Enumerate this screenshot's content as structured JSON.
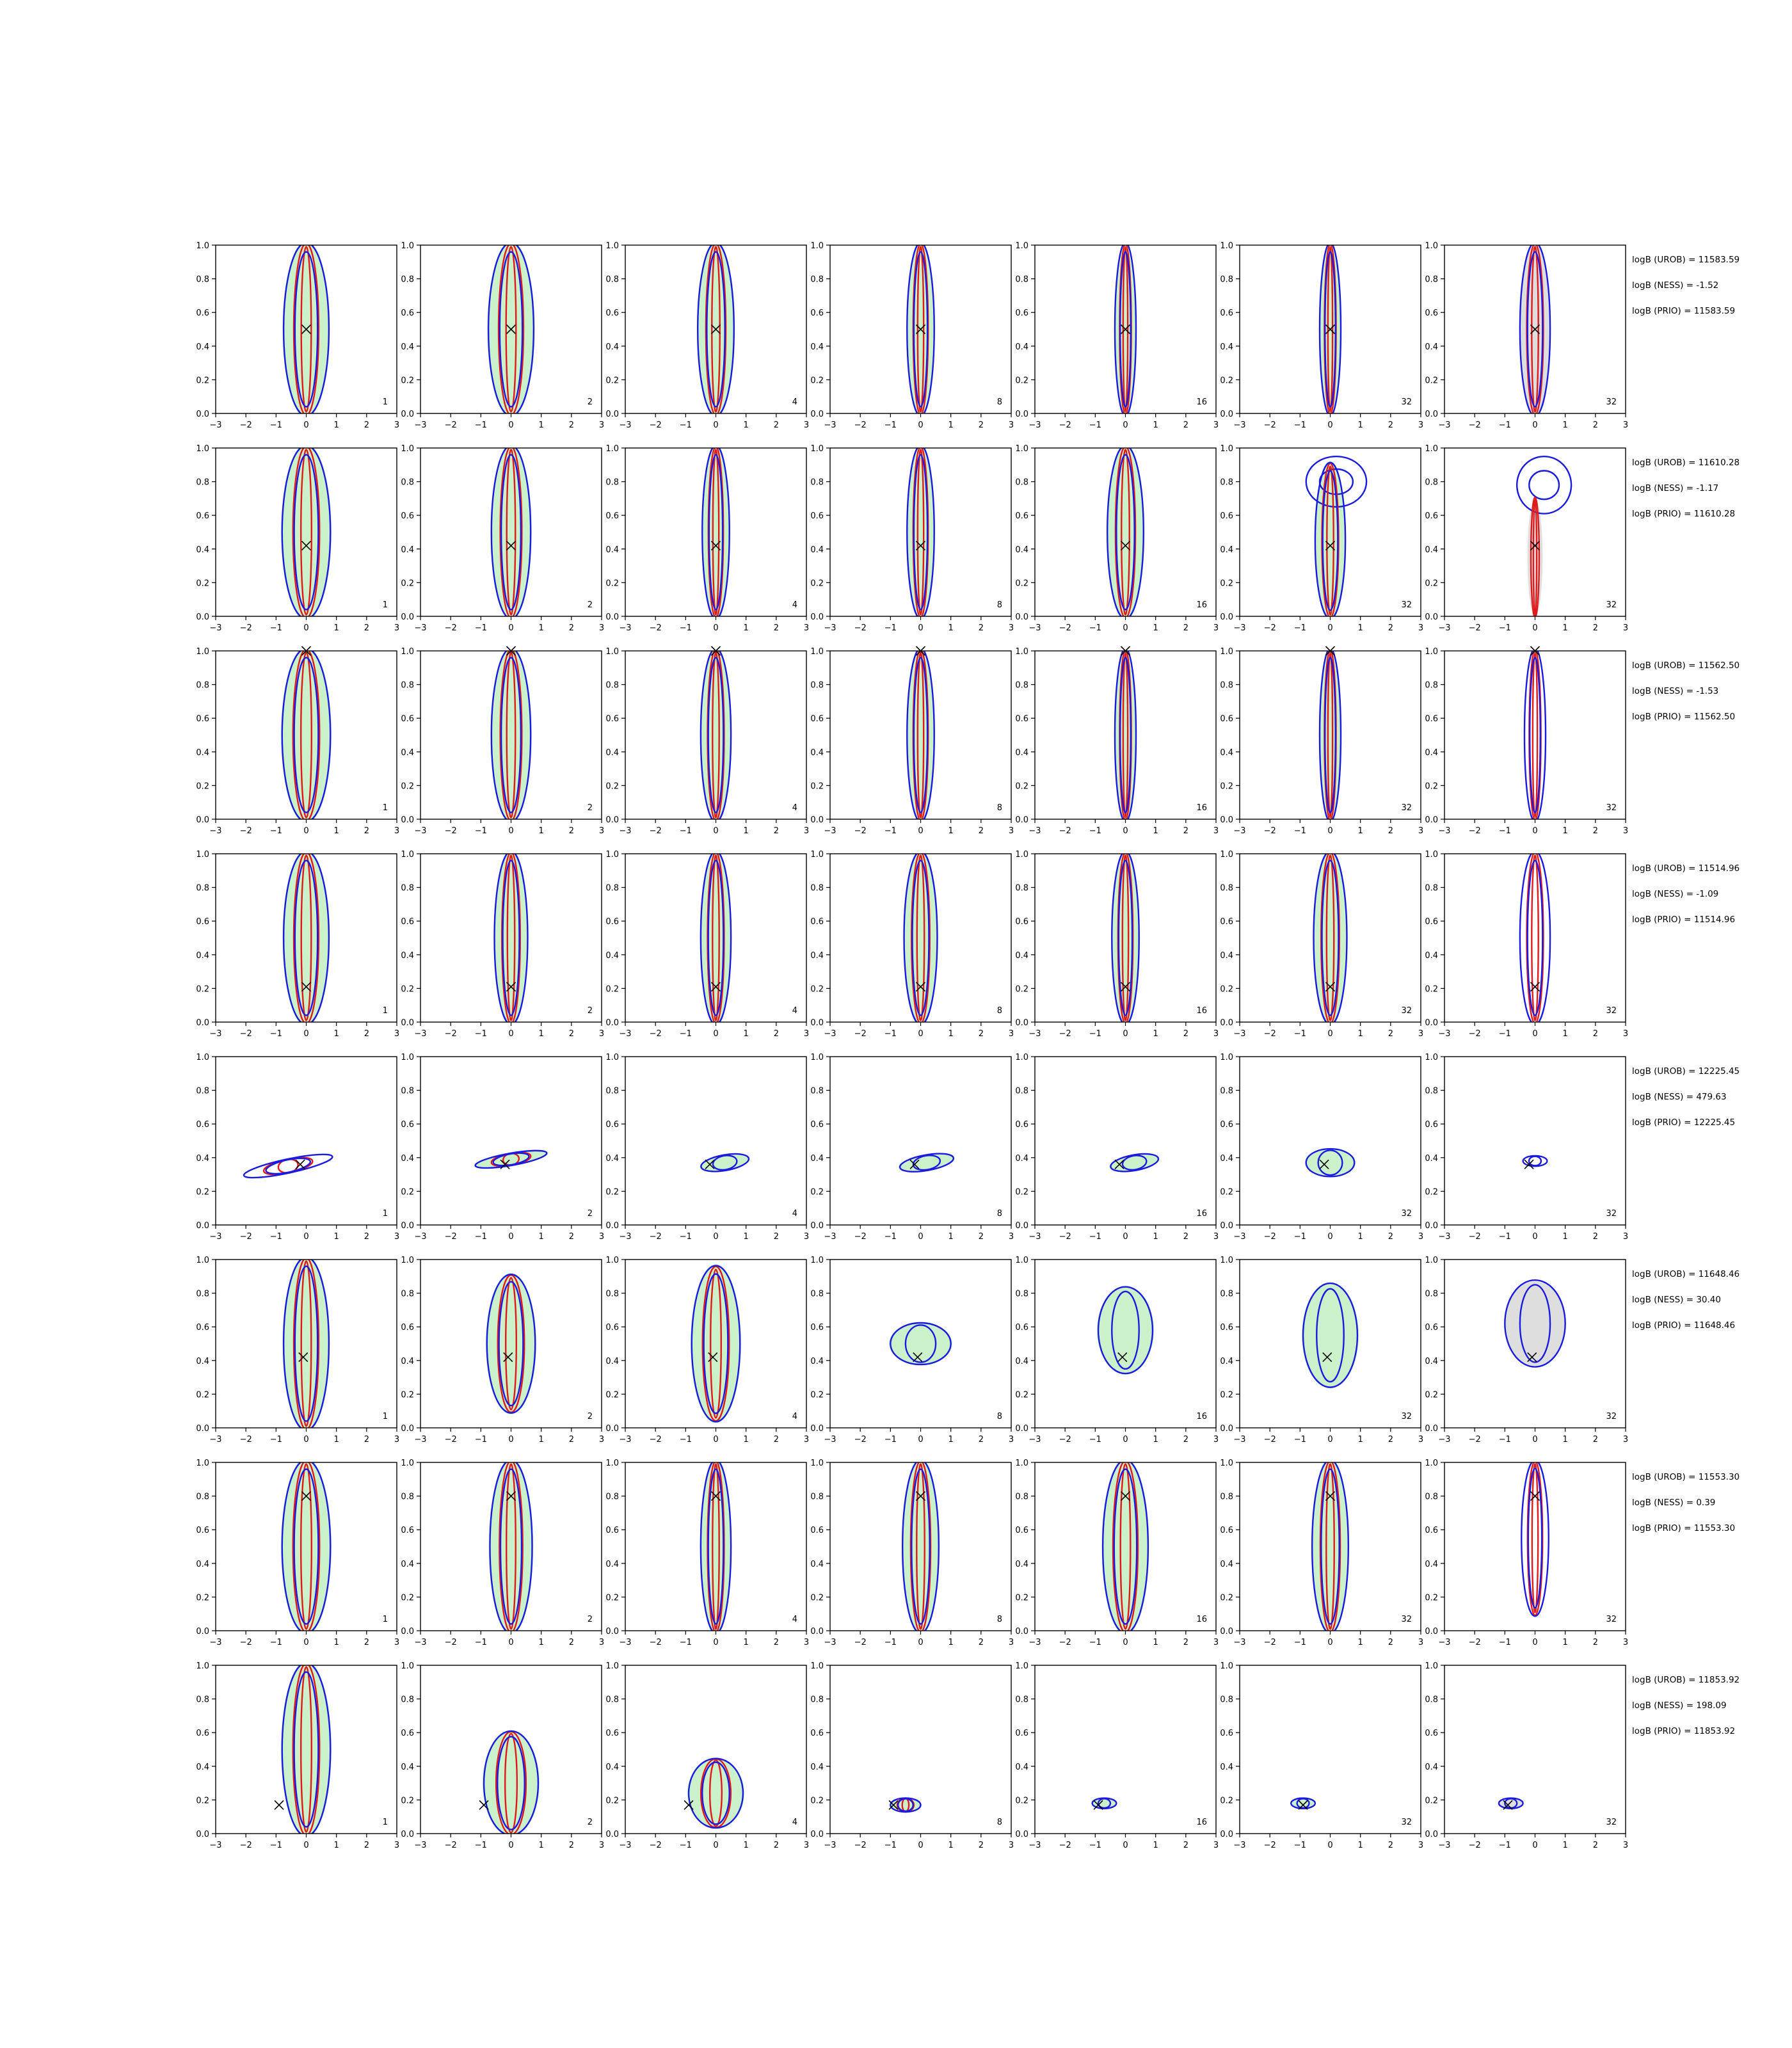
{
  "colors": {
    "red": "#e01a1a",
    "blue": "#1a1ae0",
    "green": "#9ee69e",
    "grey": "#c8c8c8"
  },
  "chart_data": {
    "type": "contour-grid",
    "xlim": [
      -3,
      3
    ],
    "ylim": [
      0.0,
      1.0
    ],
    "xticks": [
      "−3",
      "−2",
      "−1",
      "0",
      "1",
      "2",
      "3"
    ],
    "yticks": [
      "0.0",
      "0.2",
      "0.4",
      "0.6",
      "0.8",
      "1.0"
    ],
    "column_tags": [
      "1",
      "2",
      "4",
      "8",
      "16",
      "32",
      "32"
    ],
    "rows": [
      {
        "truth": [
          0.0,
          0.5
        ],
        "logB": [
          "logB (UROB) = 11583.59",
          "logB (NESS) = -1.52",
          "logB (PRIO) = 11583.59"
        ],
        "panels": [
          {
            "cx": 0.0,
            "cy": 0.5,
            "w": 0.75,
            "h": 0.5,
            "ang": 0,
            "green": true,
            "grey": false,
            "red": true,
            "blue": true
          },
          {
            "cx": 0.0,
            "cy": 0.5,
            "w": 0.75,
            "h": 0.5,
            "ang": 0,
            "green": true,
            "grey": false,
            "red": true,
            "blue": true
          },
          {
            "cx": 0.0,
            "cy": 0.5,
            "w": 0.6,
            "h": 0.5,
            "ang": 0,
            "green": true,
            "grey": false,
            "red": true,
            "blue": true
          },
          {
            "cx": 0.0,
            "cy": 0.5,
            "w": 0.45,
            "h": 0.5,
            "ang": 0,
            "green": true,
            "grey": false,
            "red": true,
            "blue": true
          },
          {
            "cx": 0.0,
            "cy": 0.5,
            "w": 0.35,
            "h": 0.5,
            "ang": 0,
            "green": true,
            "grey": false,
            "red": true,
            "blue": true
          },
          {
            "cx": 0.0,
            "cy": 0.5,
            "w": 0.35,
            "h": 0.5,
            "ang": 0,
            "green": true,
            "grey": false,
            "red": true,
            "blue": true
          },
          {
            "cx": 0.0,
            "cy": 0.5,
            "w": 0.5,
            "h": 0.5,
            "ang": 0,
            "green": false,
            "grey": true,
            "red": true,
            "blue": true
          }
        ]
      },
      {
        "truth": [
          0.0,
          0.42
        ],
        "logB": [
          "logB (UROB) = 11610.28",
          "logB (NESS) = -1.17",
          "logB (PRIO) = 11610.28"
        ],
        "panels": [
          {
            "cx": 0.0,
            "cy": 0.5,
            "w": 0.8,
            "h": 0.5,
            "ang": 0,
            "green": true,
            "grey": false,
            "red": true,
            "blue": true
          },
          {
            "cx": 0.0,
            "cy": 0.5,
            "w": 0.65,
            "h": 0.5,
            "ang": 0,
            "green": true,
            "grey": false,
            "red": true,
            "blue": true
          },
          {
            "cx": 0.0,
            "cy": 0.5,
            "w": 0.45,
            "h": 0.5,
            "ang": 0,
            "green": true,
            "grey": false,
            "red": true,
            "blue": true
          },
          {
            "cx": 0.0,
            "cy": 0.5,
            "w": 0.45,
            "h": 0.5,
            "ang": 0,
            "green": true,
            "grey": false,
            "red": true,
            "blue": true
          },
          {
            "cx": 0.0,
            "cy": 0.5,
            "w": 0.6,
            "h": 0.5,
            "ang": 0,
            "green": true,
            "grey": false,
            "red": true,
            "blue": true
          },
          {
            "cx": 0.0,
            "cy": 0.45,
            "w": 0.5,
            "h": 0.45,
            "ang": 0,
            "green": true,
            "grey": false,
            "red": true,
            "blue": true,
            "blob": [
              0.2,
              0.8,
              1.0,
              0.15
            ]
          },
          {
            "cx": 0.0,
            "cy": 0.35,
            "w": 0.25,
            "h": 0.35,
            "ang": 0,
            "green": false,
            "grey": true,
            "red": true,
            "blue": false,
            "blob": [
              0.3,
              0.78,
              0.9,
              0.17
            ]
          }
        ]
      },
      {
        "truth": [
          0.0,
          1.0
        ],
        "logB": [
          "logB (UROB) = 11562.50",
          "logB (NESS) = -1.53",
          "logB (PRIO) = 11562.50"
        ],
        "panels": [
          {
            "cx": 0.0,
            "cy": 0.5,
            "w": 0.8,
            "h": 0.5,
            "ang": 0,
            "green": true,
            "grey": false,
            "red": true,
            "blue": true
          },
          {
            "cx": 0.0,
            "cy": 0.5,
            "w": 0.65,
            "h": 0.5,
            "ang": 0,
            "green": true,
            "grey": false,
            "red": true,
            "blue": true
          },
          {
            "cx": 0.0,
            "cy": 0.5,
            "w": 0.5,
            "h": 0.5,
            "ang": 0,
            "green": true,
            "grey": false,
            "red": true,
            "blue": true
          },
          {
            "cx": 0.0,
            "cy": 0.5,
            "w": 0.45,
            "h": 0.5,
            "ang": 0,
            "green": true,
            "grey": false,
            "red": true,
            "blue": true
          },
          {
            "cx": 0.0,
            "cy": 0.5,
            "w": 0.35,
            "h": 0.5,
            "ang": 0,
            "green": true,
            "grey": false,
            "red": true,
            "blue": true
          },
          {
            "cx": 0.0,
            "cy": 0.5,
            "w": 0.35,
            "h": 0.5,
            "ang": 0,
            "green": true,
            "grey": false,
            "red": true,
            "blue": true
          },
          {
            "cx": 0.0,
            "cy": 0.5,
            "w": 0.35,
            "h": 0.5,
            "ang": 0,
            "green": false,
            "grey": false,
            "red": true,
            "blue": true
          }
        ]
      },
      {
        "truth": [
          0.0,
          0.21
        ],
        "logB": [
          "logB (UROB) = 11514.96",
          "logB (NESS) = -1.09",
          "logB (PRIO) = 11514.96"
        ],
        "panels": [
          {
            "cx": 0.0,
            "cy": 0.5,
            "w": 0.75,
            "h": 0.5,
            "ang": 0,
            "green": true,
            "grey": false,
            "red": true,
            "blue": true
          },
          {
            "cx": 0.0,
            "cy": 0.5,
            "w": 0.55,
            "h": 0.5,
            "ang": 0,
            "green": true,
            "grey": false,
            "red": true,
            "blue": true
          },
          {
            "cx": 0.0,
            "cy": 0.5,
            "w": 0.5,
            "h": 0.5,
            "ang": 0,
            "green": true,
            "grey": false,
            "red": true,
            "blue": true
          },
          {
            "cx": 0.0,
            "cy": 0.5,
            "w": 0.55,
            "h": 0.5,
            "ang": 0,
            "green": true,
            "grey": false,
            "red": true,
            "blue": true
          },
          {
            "cx": 0.0,
            "cy": 0.5,
            "w": 0.45,
            "h": 0.5,
            "ang": 0,
            "green": true,
            "grey": false,
            "red": true,
            "blue": true
          },
          {
            "cx": 0.0,
            "cy": 0.5,
            "w": 0.55,
            "h": 0.5,
            "ang": 0,
            "green": true,
            "grey": false,
            "red": true,
            "blue": true
          },
          {
            "cx": 0.0,
            "cy": 0.5,
            "w": 0.5,
            "h": 0.5,
            "ang": 0,
            "green": false,
            "grey": false,
            "red": true,
            "blue": true
          }
        ]
      },
      {
        "truth": [
          -0.2,
          0.36
        ],
        "logB": [
          "logB (UROB) = 12225.45",
          "logB (NESS) = 479.63",
          "logB (PRIO) = 12225.45"
        ],
        "panels": [
          {
            "cx": -0.6,
            "cy": 0.35,
            "w": 1.5,
            "h": 0.04,
            "ang": -12,
            "green": false,
            "grey": false,
            "red": true,
            "blue": true
          },
          {
            "cx": 0.0,
            "cy": 0.39,
            "w": 1.2,
            "h": 0.035,
            "ang": -10,
            "green": true,
            "grey": false,
            "red": true,
            "blue": true
          },
          {
            "cx": 0.3,
            "cy": 0.37,
            "w": 0.8,
            "h": 0.045,
            "ang": -10,
            "green": true,
            "grey": false,
            "red": false,
            "blue": true
          },
          {
            "cx": 0.2,
            "cy": 0.37,
            "w": 0.9,
            "h": 0.045,
            "ang": -10,
            "green": true,
            "grey": false,
            "red": false,
            "blue": true
          },
          {
            "cx": 0.3,
            "cy": 0.37,
            "w": 0.8,
            "h": 0.045,
            "ang": -10,
            "green": true,
            "grey": false,
            "red": false,
            "blue": true
          },
          {
            "cx": 0.0,
            "cy": 0.37,
            "w": 0.8,
            "h": 0.08,
            "ang": 0,
            "green": true,
            "grey": false,
            "red": false,
            "blue": true
          },
          {
            "cx": 0.0,
            "cy": 0.38,
            "w": 0.4,
            "h": 0.03,
            "ang": 0,
            "green": false,
            "grey": false,
            "red": false,
            "blue": true
          }
        ]
      },
      {
        "truth": [
          -0.1,
          0.42
        ],
        "logB": [
          "logB (UROB) = 11648.46",
          "logB (NESS) = 30.40",
          "logB (PRIO) = 11648.46"
        ],
        "panels": [
          {
            "cx": 0.0,
            "cy": 0.5,
            "w": 0.75,
            "h": 0.5,
            "ang": 0,
            "green": true,
            "grey": false,
            "red": true,
            "blue": true
          },
          {
            "cx": 0.0,
            "cy": 0.5,
            "w": 0.8,
            "h": 0.4,
            "ang": 0,
            "green": true,
            "grey": false,
            "red": true,
            "blue": true
          },
          {
            "cx": 0.0,
            "cy": 0.5,
            "w": 0.8,
            "h": 0.45,
            "ang": 0,
            "green": true,
            "grey": false,
            "red": true,
            "blue": true
          },
          {
            "cx": 0.0,
            "cy": 0.5,
            "w": 1.0,
            "h": 0.12,
            "ang": 0,
            "green": true,
            "grey": false,
            "red": false,
            "blue": true
          },
          {
            "cx": 0.0,
            "cy": 0.58,
            "w": 0.9,
            "h": 0.25,
            "ang": 0,
            "green": true,
            "grey": false,
            "red": false,
            "blue": true
          },
          {
            "cx": 0.0,
            "cy": 0.55,
            "w": 0.9,
            "h": 0.3,
            "ang": 0,
            "green": true,
            "grey": false,
            "red": false,
            "blue": true
          },
          {
            "cx": 0.0,
            "cy": 0.62,
            "w": 1.0,
            "h": 0.25,
            "ang": 0,
            "green": false,
            "grey": true,
            "red": false,
            "blue": true
          }
        ]
      },
      {
        "truth": [
          0.0,
          0.8
        ],
        "logB": [
          "logB (UROB) = 11553.30",
          "logB (NESS) = 0.39",
          "logB (PRIO) = 11553.30"
        ],
        "panels": [
          {
            "cx": 0.0,
            "cy": 0.5,
            "w": 0.8,
            "h": 0.5,
            "ang": 0,
            "green": true,
            "grey": false,
            "red": true,
            "blue": true
          },
          {
            "cx": 0.0,
            "cy": 0.5,
            "w": 0.7,
            "h": 0.5,
            "ang": 0,
            "green": true,
            "grey": false,
            "red": true,
            "blue": true
          },
          {
            "cx": 0.0,
            "cy": 0.5,
            "w": 0.5,
            "h": 0.5,
            "ang": 0,
            "green": true,
            "grey": false,
            "red": true,
            "blue": true
          },
          {
            "cx": 0.0,
            "cy": 0.5,
            "w": 0.6,
            "h": 0.5,
            "ang": 0,
            "green": true,
            "grey": false,
            "red": true,
            "blue": true
          },
          {
            "cx": 0.0,
            "cy": 0.5,
            "w": 0.75,
            "h": 0.5,
            "ang": 0,
            "green": true,
            "grey": false,
            "red": true,
            "blue": true
          },
          {
            "cx": 0.0,
            "cy": 0.5,
            "w": 0.6,
            "h": 0.5,
            "ang": 0,
            "green": true,
            "grey": false,
            "red": true,
            "blue": true
          },
          {
            "cx": 0.0,
            "cy": 0.55,
            "w": 0.45,
            "h": 0.45,
            "ang": 0,
            "green": false,
            "grey": false,
            "red": true,
            "blue": true
          }
        ]
      },
      {
        "truth": [
          -0.9,
          0.17
        ],
        "logB": [
          "logB (UROB) = 11853.92",
          "logB (NESS) = 198.09",
          "logB (PRIO) = 11853.92"
        ],
        "panels": [
          {
            "cx": 0.0,
            "cy": 0.5,
            "w": 0.8,
            "h": 0.5,
            "ang": 0,
            "green": true,
            "grey": false,
            "red": true,
            "blue": true
          },
          {
            "cx": 0.0,
            "cy": 0.3,
            "w": 0.9,
            "h": 0.3,
            "ang": 0,
            "green": true,
            "grey": false,
            "red": true,
            "blue": true
          },
          {
            "cx": 0.0,
            "cy": 0.24,
            "w": 0.9,
            "h": 0.2,
            "ang": 0,
            "green": true,
            "grey": false,
            "red": true,
            "blue": true
          },
          {
            "cx": -0.5,
            "cy": 0.17,
            "w": 0.5,
            "h": 0.04,
            "ang": 0,
            "green": true,
            "grey": false,
            "red": true,
            "blue": true
          },
          {
            "cx": -0.7,
            "cy": 0.18,
            "w": 0.4,
            "h": 0.03,
            "ang": 0,
            "green": true,
            "grey": false,
            "red": false,
            "blue": true
          },
          {
            "cx": -0.9,
            "cy": 0.18,
            "w": 0.4,
            "h": 0.03,
            "ang": 0,
            "green": true,
            "grey": false,
            "red": false,
            "blue": true
          },
          {
            "cx": -0.8,
            "cy": 0.18,
            "w": 0.4,
            "h": 0.03,
            "ang": 0,
            "green": false,
            "grey": true,
            "red": false,
            "blue": true
          }
        ]
      }
    ]
  }
}
